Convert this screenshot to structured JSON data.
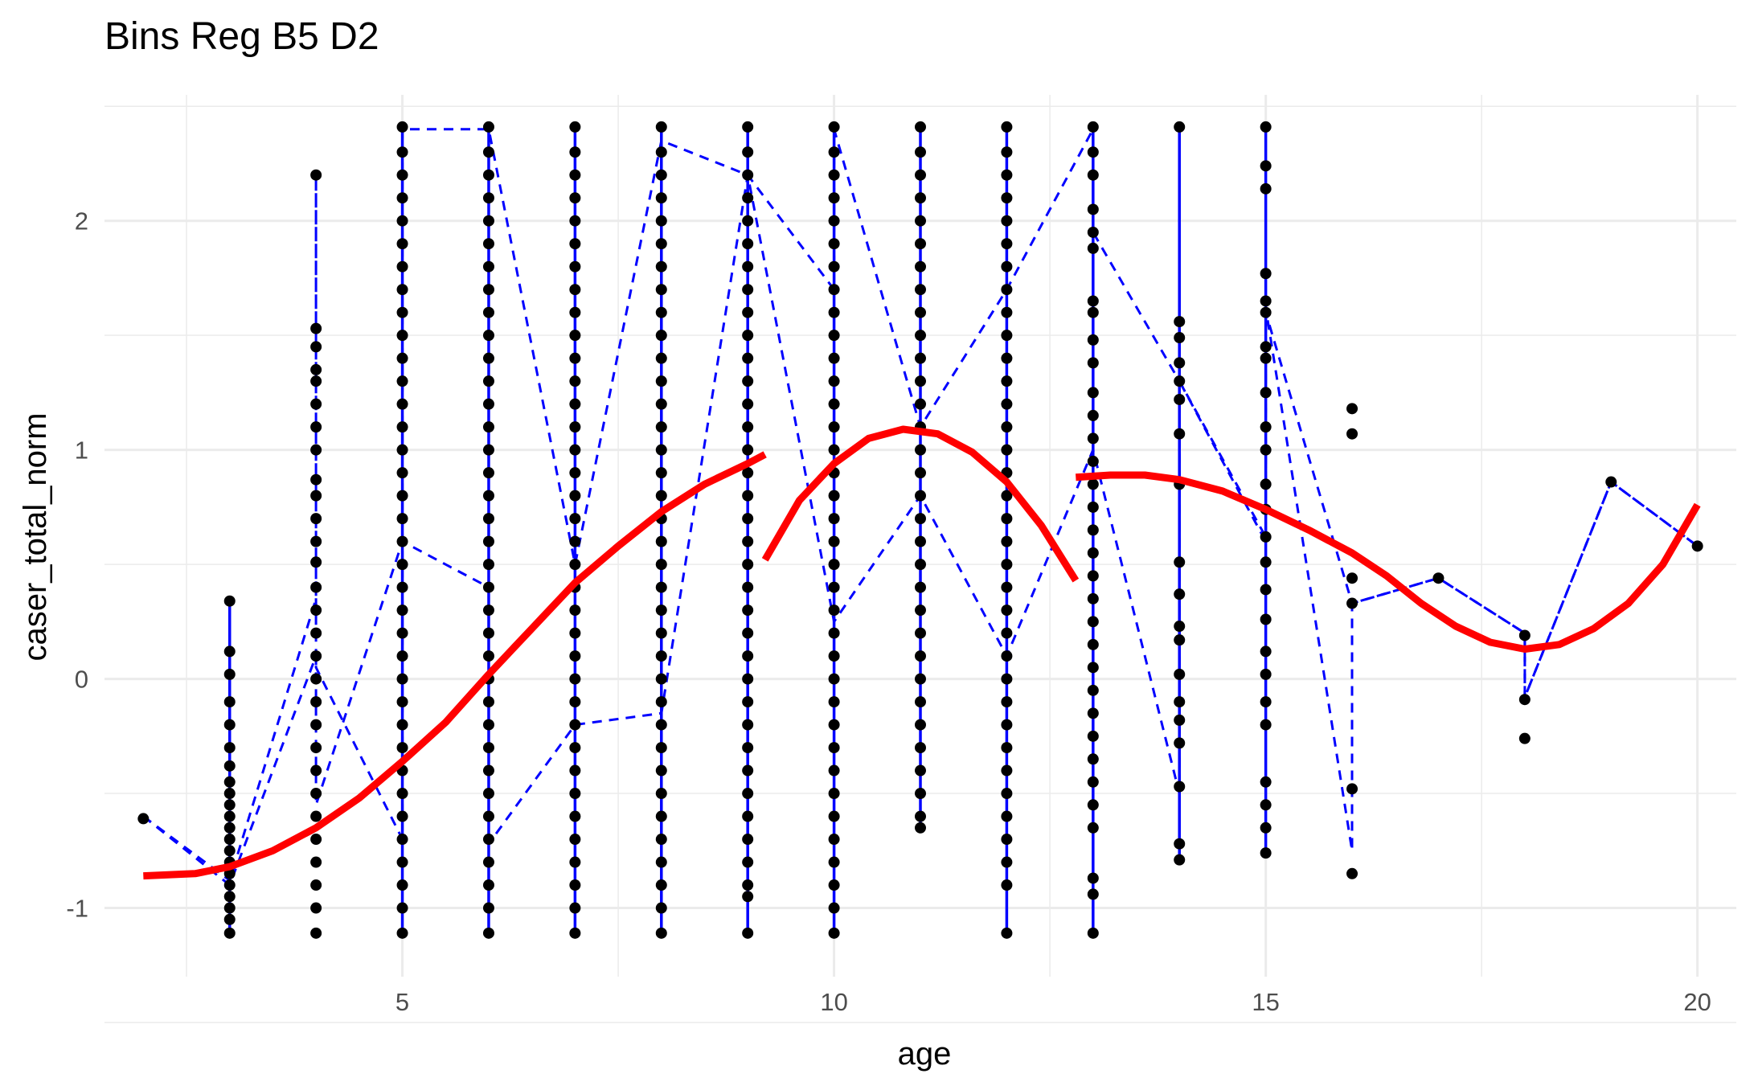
{
  "chart_data": {
    "type": "scatter",
    "title": "Bins Reg B5 D2",
    "xlabel": "age",
    "ylabel": "caser_total_norm",
    "xlim": [
      1.55,
      20.45
    ],
    "ylim": [
      -1.3,
      2.55
    ],
    "x_ticks": [
      5,
      10,
      15,
      20
    ],
    "y_ticks": [
      -1,
      0,
      1,
      2
    ],
    "x_tick_labels": [
      "5",
      "10",
      "15",
      "20"
    ],
    "y_tick_labels": [
      "-1",
      "0",
      "1",
      "2"
    ],
    "grid": true,
    "colors": {
      "points": "#000000",
      "binlines": "#0000ff",
      "fit": "#ff0000",
      "grid": "#ebebeb"
    },
    "points": {
      "2": [
        -0.61
      ],
      "3": [
        -1.11,
        -1.05,
        -1.0,
        -0.95,
        -0.9,
        -0.85,
        -0.8,
        -0.75,
        -0.7,
        -0.65,
        -0.6,
        -0.55,
        -0.5,
        -0.45,
        -0.38,
        -0.3,
        -0.2,
        -0.1,
        0.02,
        0.12,
        0.34
      ],
      "4": [
        -1.11,
        -1.0,
        -0.9,
        -0.8,
        -0.7,
        -0.6,
        -0.5,
        -0.4,
        -0.3,
        -0.2,
        -0.1,
        0.0,
        0.1,
        0.2,
        0.3,
        0.4,
        0.51,
        0.6,
        0.7,
        0.8,
        0.87,
        1.0,
        1.1,
        1.2,
        1.3,
        1.35,
        1.45,
        1.53,
        2.2
      ],
      "5": [
        -1.11,
        -1.0,
        -0.9,
        -0.8,
        -0.7,
        -0.6,
        -0.5,
        -0.4,
        -0.3,
        -0.2,
        -0.1,
        0.0,
        0.1,
        0.2,
        0.3,
        0.4,
        0.5,
        0.6,
        0.7,
        0.8,
        0.9,
        1.0,
        1.1,
        1.2,
        1.3,
        1.4,
        1.5,
        1.6,
        1.7,
        1.8,
        1.9,
        2.0,
        2.1,
        2.2,
        2.3,
        2.41
      ],
      "6": [
        -1.11,
        -1.0,
        -0.9,
        -0.8,
        -0.7,
        -0.6,
        -0.5,
        -0.4,
        -0.3,
        -0.2,
        -0.1,
        0.0,
        0.1,
        0.2,
        0.3,
        0.4,
        0.5,
        0.6,
        0.7,
        0.8,
        0.9,
        1.0,
        1.1,
        1.2,
        1.3,
        1.4,
        1.5,
        1.6,
        1.7,
        1.8,
        1.9,
        2.0,
        2.1,
        2.2,
        2.3,
        2.41
      ],
      "7": [
        -1.11,
        -1.0,
        -0.9,
        -0.8,
        -0.7,
        -0.6,
        -0.5,
        -0.4,
        -0.3,
        -0.2,
        -0.1,
        0.0,
        0.1,
        0.2,
        0.3,
        0.4,
        0.5,
        0.6,
        0.7,
        0.8,
        0.9,
        1.0,
        1.1,
        1.2,
        1.3,
        1.4,
        1.5,
        1.6,
        1.7,
        1.8,
        1.9,
        2.0,
        2.1,
        2.2,
        2.3,
        2.41
      ],
      "8": [
        -1.11,
        -1.0,
        -0.9,
        -0.8,
        -0.7,
        -0.6,
        -0.5,
        -0.4,
        -0.3,
        -0.2,
        -0.1,
        0.0,
        0.1,
        0.2,
        0.3,
        0.4,
        0.5,
        0.6,
        0.7,
        0.8,
        0.9,
        1.0,
        1.1,
        1.2,
        1.3,
        1.4,
        1.5,
        1.6,
        1.7,
        1.8,
        1.9,
        2.0,
        2.1,
        2.2,
        2.3,
        2.41
      ],
      "9": [
        -1.11,
        -0.95,
        -0.9,
        -0.8,
        -0.7,
        -0.6,
        -0.5,
        -0.4,
        -0.3,
        -0.2,
        -0.1,
        0.0,
        0.1,
        0.2,
        0.3,
        0.4,
        0.5,
        0.6,
        0.7,
        0.8,
        0.9,
        1.0,
        1.1,
        1.2,
        1.3,
        1.4,
        1.5,
        1.6,
        1.7,
        1.8,
        1.9,
        2.0,
        2.1,
        2.2,
        2.3,
        2.41
      ],
      "10": [
        -1.11,
        -1.0,
        -0.9,
        -0.8,
        -0.7,
        -0.6,
        -0.5,
        -0.4,
        -0.3,
        -0.2,
        -0.1,
        0.0,
        0.1,
        0.2,
        0.3,
        0.4,
        0.5,
        0.6,
        0.7,
        0.8,
        0.9,
        1.0,
        1.1,
        1.2,
        1.3,
        1.4,
        1.5,
        1.6,
        1.7,
        1.8,
        1.9,
        2.0,
        2.1,
        2.2,
        2.3,
        2.41
      ],
      "11": [
        -0.65,
        -0.6,
        -0.5,
        -0.4,
        -0.3,
        -0.2,
        -0.1,
        0.0,
        0.1,
        0.2,
        0.3,
        0.4,
        0.5,
        0.6,
        0.7,
        0.8,
        0.9,
        1.0,
        1.1,
        1.2,
        1.3,
        1.4,
        1.5,
        1.6,
        1.7,
        1.8,
        1.9,
        2.0,
        2.1,
        2.2,
        2.3,
        2.41
      ],
      "12": [
        -1.11,
        -0.9,
        -0.8,
        -0.7,
        -0.6,
        -0.5,
        -0.4,
        -0.3,
        -0.2,
        -0.1,
        0.0,
        0.1,
        0.2,
        0.3,
        0.4,
        0.5,
        0.6,
        0.7,
        0.8,
        0.9,
        1.0,
        1.1,
        1.2,
        1.3,
        1.4,
        1.5,
        1.6,
        1.7,
        1.8,
        1.9,
        2.0,
        2.1,
        2.2,
        2.3,
        2.41
      ],
      "13": [
        -1.11,
        -0.94,
        -0.87,
        -0.65,
        -0.55,
        -0.45,
        -0.35,
        -0.25,
        -0.15,
        -0.05,
        0.05,
        0.15,
        0.25,
        0.35,
        0.45,
        0.55,
        0.65,
        0.75,
        0.85,
        0.95,
        1.05,
        1.15,
        1.25,
        1.38,
        1.48,
        1.6,
        1.65,
        1.88,
        1.95,
        2.05,
        2.2,
        2.3,
        2.41
      ],
      "14": [
        -0.79,
        -0.72,
        -0.47,
        -0.28,
        -0.18,
        -0.1,
        0.02,
        0.17,
        0.23,
        0.37,
        0.51,
        0.85,
        1.07,
        1.22,
        1.3,
        1.38,
        1.49,
        1.56,
        2.41
      ],
      "15": [
        -0.76,
        -0.65,
        -0.55,
        -0.45,
        -0.2,
        -0.1,
        0.02,
        0.12,
        0.26,
        0.39,
        0.51,
        0.62,
        0.74,
        0.85,
        1.0,
        1.1,
        1.25,
        1.4,
        1.45,
        1.6,
        1.65,
        1.77,
        2.14,
        2.24,
        2.41
      ],
      "16": [
        -0.85,
        -0.48,
        0.33,
        0.44,
        1.07,
        1.18
      ],
      "17": [
        0.44
      ],
      "18": [
        -0.26,
        -0.09,
        0.19
      ],
      "19": [
        0.86
      ],
      "20": [
        0.58
      ]
    },
    "ci_lines": [
      {
        "x": 3,
        "y": [
          -1.11,
          0.34
        ]
      },
      {
        "x": 5,
        "y": [
          -1.11,
          2.41
        ]
      },
      {
        "x": 6,
        "y": [
          -1.11,
          2.41
        ]
      },
      {
        "x": 7,
        "y": [
          -1.11,
          2.41
        ]
      },
      {
        "x": 8,
        "y": [
          -1.11,
          2.41
        ]
      },
      {
        "x": 9,
        "y": [
          -1.11,
          2.41
        ]
      },
      {
        "x": 10,
        "y": [
          -1.11,
          2.41
        ]
      },
      {
        "x": 11,
        "y": [
          -0.65,
          2.41
        ]
      },
      {
        "x": 12,
        "y": [
          -1.11,
          2.41
        ]
      },
      {
        "x": 13,
        "y": [
          -1.11,
          2.41
        ]
      },
      {
        "x": 14,
        "y": [
          -0.79,
          2.41
        ]
      },
      {
        "x": 15,
        "y": [
          -0.76,
          2.41
        ]
      }
    ],
    "band_upper": [
      [
        2,
        -0.6
      ],
      [
        3,
        -0.88
      ],
      [
        4,
        0.35
      ],
      [
        4,
        2.2
      ],
      [
        4,
        0.05
      ],
      [
        5,
        -0.7
      ],
      [
        5,
        2.4
      ],
      [
        6,
        2.4
      ],
      [
        7,
        0.5
      ],
      [
        8,
        2.35
      ],
      [
        9,
        2.2
      ],
      [
        10,
        1.7
      ],
      [
        10,
        2.4
      ],
      [
        11,
        1.1
      ],
      [
        12,
        1.7
      ],
      [
        13,
        2.4
      ],
      [
        13,
        1.95
      ],
      [
        14,
        1.3
      ],
      [
        15,
        0.62
      ],
      [
        15,
        1.62
      ],
      [
        16,
        -0.75
      ],
      [
        16,
        0.33
      ],
      [
        17,
        0.44
      ],
      [
        18,
        0.2
      ],
      [
        18,
        -0.08
      ],
      [
        19,
        0.86
      ],
      [
        20,
        0.58
      ]
    ],
    "band_lower": [
      [
        2,
        -0.6
      ],
      [
        3,
        -0.9
      ],
      [
        4,
        0.1
      ],
      [
        4,
        -0.55
      ],
      [
        5,
        0.6
      ],
      [
        6,
        0.4
      ],
      [
        6,
        -0.72
      ],
      [
        7,
        -0.2
      ],
      [
        8,
        -0.15
      ],
      [
        9,
        2.2
      ],
      [
        10,
        0.25
      ],
      [
        11,
        0.8
      ],
      [
        12,
        0.1
      ],
      [
        13,
        1.0
      ],
      [
        14,
        -0.5
      ],
      [
        14,
        1.3
      ],
      [
        15,
        0.6
      ],
      [
        15,
        1.6
      ],
      [
        16,
        0.33
      ],
      [
        17,
        0.44
      ],
      [
        18,
        0.2
      ],
      [
        18,
        -0.08
      ],
      [
        19,
        0.86
      ],
      [
        20,
        0.58
      ]
    ],
    "fit_segments": [
      [
        [
          2.0,
          -0.86
        ],
        [
          2.6,
          -0.85
        ],
        [
          3.0,
          -0.82
        ],
        [
          3.5,
          -0.75
        ],
        [
          4.0,
          -0.65
        ],
        [
          4.5,
          -0.52
        ],
        [
          5.0,
          -0.36
        ],
        [
          5.5,
          -0.19
        ],
        [
          6.0,
          0.02
        ],
        [
          6.5,
          0.22
        ],
        [
          7.0,
          0.42
        ],
        [
          7.5,
          0.58
        ],
        [
          8.0,
          0.73
        ],
        [
          8.5,
          0.85
        ],
        [
          9.0,
          0.94
        ],
        [
          9.2,
          0.98
        ]
      ],
      [
        [
          9.2,
          0.52
        ],
        [
          9.6,
          0.78
        ],
        [
          10.0,
          0.94
        ],
        [
          10.4,
          1.05
        ],
        [
          10.8,
          1.09
        ],
        [
          11.2,
          1.07
        ],
        [
          11.6,
          0.99
        ],
        [
          12.0,
          0.86
        ],
        [
          12.4,
          0.67
        ],
        [
          12.8,
          0.43
        ]
      ],
      [
        [
          12.8,
          0.88
        ],
        [
          13.2,
          0.89
        ],
        [
          13.6,
          0.89
        ],
        [
          14.0,
          0.87
        ],
        [
          14.5,
          0.82
        ],
        [
          15.0,
          0.74
        ],
        [
          15.5,
          0.65
        ],
        [
          16.0,
          0.55
        ],
        [
          16.4,
          0.45
        ],
        [
          16.8,
          0.33
        ],
        [
          17.2,
          0.23
        ],
        [
          17.6,
          0.16
        ],
        [
          18.0,
          0.13
        ],
        [
          18.4,
          0.15
        ],
        [
          18.8,
          0.22
        ],
        [
          19.2,
          0.33
        ],
        [
          19.6,
          0.5
        ],
        [
          20.0,
          0.76
        ]
      ]
    ]
  }
}
